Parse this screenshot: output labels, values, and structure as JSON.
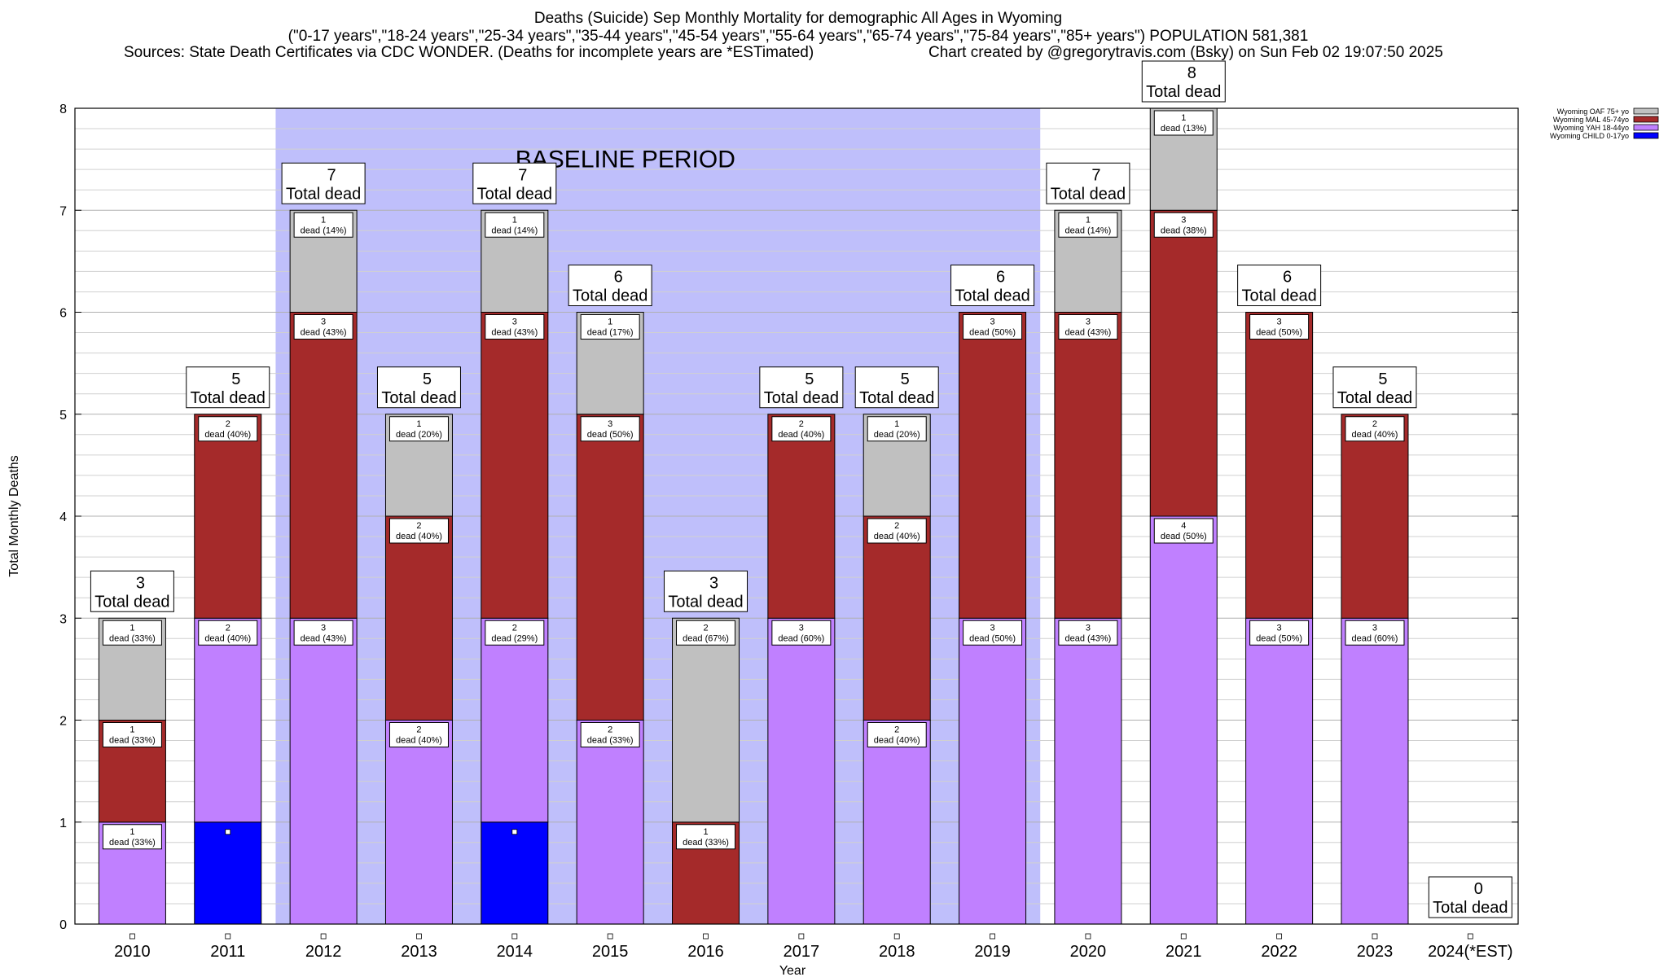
{
  "header": {
    "title": "Deaths (Suicide) Sep Monthly Mortality for demographic All Ages in Wyoming",
    "subtitle": "(\"0-17 years\",\"18-24 years\",\"25-34 years\",\"35-44 years\",\"45-54 years\",\"55-64 years\",\"65-74 years\",\"75-84 years\",\"85+ years\") POPULATION 581,381",
    "sources": "Sources: State Death Certificates via CDC WONDER. (Deaths for incomplete years are *ESTimated)",
    "credit": "Chart created by @gregorytravis.com (Bsky) on Sun Feb 02 19:07:50 2025"
  },
  "chart_data": {
    "type": "bar",
    "stacked": true,
    "xlabel": "Year",
    "ylabel": "Total Monthly Deaths",
    "ylim": [
      0,
      8
    ],
    "yticks": [
      "0",
      "1",
      "2",
      "3",
      "4",
      "5",
      "6",
      "7",
      "8"
    ],
    "categories": [
      "2010",
      "2011",
      "2012",
      "2013",
      "2014",
      "2015",
      "2016",
      "2017",
      "2018",
      "2019",
      "2020",
      "2021",
      "2022",
      "2023",
      "2024(*EST)"
    ],
    "baseline": {
      "label": "BASELINE PERIOD",
      "start": "2012",
      "end": "2019",
      "color": "#bfbffb"
    },
    "total_label": "Total dead",
    "segment_word": "dead",
    "series": [
      {
        "name": "Wyoming CHILD 0-17yo",
        "color": "#0000ff",
        "values": [
          0,
          1,
          0,
          0,
          1,
          0,
          0,
          0,
          0,
          0,
          0,
          0,
          0,
          0,
          0
        ]
      },
      {
        "name": "Wyoming YAH 18-44yo",
        "color": "#c080ff",
        "values": [
          1,
          2,
          3,
          2,
          2,
          2,
          0,
          3,
          2,
          3,
          3,
          4,
          3,
          3,
          0
        ]
      },
      {
        "name": "Wyoming MAL 45-74yo",
        "color": "#a52a2a",
        "values": [
          1,
          2,
          3,
          2,
          3,
          3,
          1,
          2,
          2,
          3,
          3,
          3,
          3,
          2,
          0
        ]
      },
      {
        "name": "Wyoming OAF 75+ yo",
        "color": "#c0c0c0",
        "values": [
          1,
          0,
          1,
          1,
          1,
          1,
          2,
          0,
          1,
          0,
          1,
          1,
          0,
          0,
          0
        ]
      }
    ],
    "totals": [
      3,
      5,
      7,
      5,
      7,
      6,
      3,
      5,
      5,
      6,
      7,
      8,
      6,
      5,
      0
    ],
    "segment_labels": [
      [
        null,
        null,
        "1",
        "dead (33%)"
      ],
      [
        null,
        null,
        null,
        null
      ]
    ],
    "legend_position": "top-right",
    "grid": true
  }
}
